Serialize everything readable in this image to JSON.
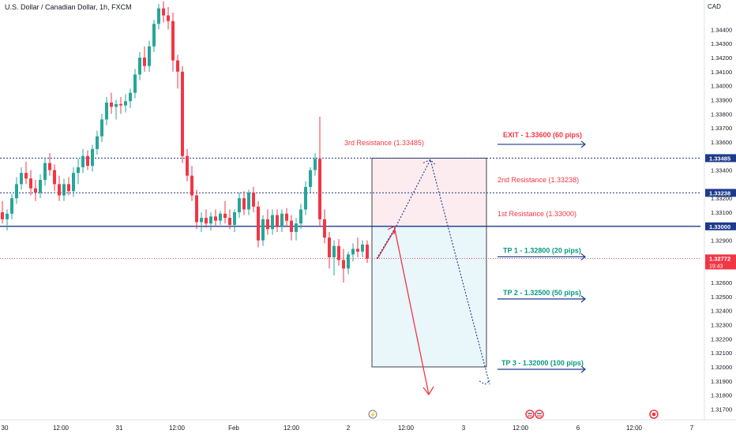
{
  "header": {
    "title": "U.S. Dollar / Canadian Dollar, 1h, FXCM",
    "currency": "CAD"
  },
  "chart_data": {
    "type": "candlestick",
    "ylim": [
      1.3168,
      1.3452
    ],
    "y_ticks": [
      "1.34400",
      "1.34300",
      "1.34200",
      "1.34100",
      "1.34000",
      "1.33900",
      "1.33800",
      "1.33700",
      "1.33600",
      "1.33400",
      "1.33200",
      "1.33100",
      "1.32900",
      "1.32600",
      "1.32500",
      "1.32400",
      "1.32300",
      "1.32200",
      "1.32100",
      "1.32000",
      "1.31900",
      "1.31800",
      "1.31700"
    ],
    "x_ticks": [
      "30",
      "12:00",
      "31",
      "12:00",
      "Feb",
      "12:00",
      "2",
      "12:00",
      "3",
      "12:00",
      "6",
      "12:00",
      "7"
    ],
    "grid": false,
    "price_tags": [
      {
        "label": "1.33485",
        "value": 1.33485,
        "color": "#1e3a8a",
        "style": "dotted"
      },
      {
        "label": "1.33238",
        "value": 1.33238,
        "color": "#1e3a8a",
        "style": "dotted"
      },
      {
        "label": "1.33000",
        "value": 1.33,
        "color": "#1e3a8a",
        "style": "solid"
      }
    ],
    "current_price": {
      "label": "1.32772",
      "countdown": "19:43",
      "value": 1.32772,
      "color": "#f23645"
    },
    "annotations": {
      "resistances": [
        {
          "text": "3rd Resistance (1.33485)",
          "value": 1.33485
        },
        {
          "text": "2nd Resistance (1.33238)",
          "value": 1.33238
        },
        {
          "text": "1st Resistance (1.33000)",
          "value": 1.33
        }
      ],
      "exit": {
        "text": "EXIT - 1.33600 (60 pips)",
        "value": 1.336
      },
      "targets": [
        {
          "text": "TP 1 - 1.32800 (20 pips)",
          "value": 1.328
        },
        {
          "text": "TP 2 - 1.32500 (50 pips)",
          "value": 1.325
        },
        {
          "text": "TP 3 - 1.32000 (100 pips)",
          "value": 1.32
        }
      ]
    },
    "candles": [
      [
        1.331,
        1.3318,
        1.3302,
        1.3305
      ],
      [
        1.3305,
        1.3312,
        1.3297,
        1.3309
      ],
      [
        1.3309,
        1.3323,
        1.3305,
        1.332
      ],
      [
        1.332,
        1.3335,
        1.3316,
        1.333
      ],
      [
        1.333,
        1.3342,
        1.3326,
        1.3338
      ],
      [
        1.3338,
        1.3346,
        1.333,
        1.3334
      ],
      [
        1.3334,
        1.334,
        1.3322,
        1.3327
      ],
      [
        1.3327,
        1.3333,
        1.3318,
        1.3324
      ],
      [
        1.3324,
        1.3337,
        1.332,
        1.3333
      ],
      [
        1.3333,
        1.3349,
        1.3329,
        1.3345
      ],
      [
        1.3345,
        1.3352,
        1.3336,
        1.334
      ],
      [
        1.334,
        1.3344,
        1.3325,
        1.333
      ],
      [
        1.333,
        1.3336,
        1.3318,
        1.3322
      ],
      [
        1.3322,
        1.3334,
        1.3318,
        1.333
      ],
      [
        1.333,
        1.3335,
        1.3322,
        1.3325
      ],
      [
        1.3325,
        1.3342,
        1.3321,
        1.3338
      ],
      [
        1.3338,
        1.3348,
        1.333,
        1.3342
      ],
      [
        1.3342,
        1.3355,
        1.3338,
        1.335
      ],
      [
        1.335,
        1.3354,
        1.334,
        1.3343
      ],
      [
        1.3343,
        1.3358,
        1.3339,
        1.3355
      ],
      [
        1.3355,
        1.3368,
        1.3351,
        1.3364
      ],
      [
        1.3364,
        1.338,
        1.336,
        1.3376
      ],
      [
        1.3376,
        1.3392,
        1.3372,
        1.3388
      ],
      [
        1.3388,
        1.3395,
        1.338,
        1.3385
      ],
      [
        1.3385,
        1.339,
        1.3376,
        1.3387
      ],
      [
        1.3387,
        1.3392,
        1.338,
        1.3386
      ],
      [
        1.3386,
        1.3394,
        1.3381,
        1.3389
      ],
      [
        1.3389,
        1.3398,
        1.3384,
        1.3395
      ],
      [
        1.3395,
        1.3412,
        1.3391,
        1.3408
      ],
      [
        1.3408,
        1.3424,
        1.3404,
        1.342
      ],
      [
        1.342,
        1.3428,
        1.341,
        1.3414
      ],
      [
        1.3414,
        1.3432,
        1.341,
        1.3428
      ],
      [
        1.3428,
        1.3447,
        1.3424,
        1.3444
      ],
      [
        1.3444,
        1.3458,
        1.344,
        1.3455
      ],
      [
        1.3455,
        1.346,
        1.3445,
        1.345
      ],
      [
        1.345,
        1.3456,
        1.344,
        1.3446
      ],
      [
        1.3446,
        1.3452,
        1.341,
        1.3418
      ],
      [
        1.3418,
        1.3422,
        1.3398,
        1.341
      ],
      [
        1.341,
        1.3414,
        1.3345,
        1.335
      ],
      [
        1.335,
        1.3355,
        1.3332,
        1.3336
      ],
      [
        1.3336,
        1.3343,
        1.3318,
        1.3322
      ],
      [
        1.3322,
        1.3326,
        1.3298,
        1.3303
      ],
      [
        1.3303,
        1.331,
        1.3296,
        1.3306
      ],
      [
        1.3306,
        1.3312,
        1.3299,
        1.3302
      ],
      [
        1.3302,
        1.331,
        1.3297,
        1.3307
      ],
      [
        1.3307,
        1.3312,
        1.33,
        1.3304
      ],
      [
        1.3304,
        1.3311,
        1.3301,
        1.3309
      ],
      [
        1.3309,
        1.3318,
        1.3302,
        1.3306
      ],
      [
        1.3306,
        1.3312,
        1.3298,
        1.3301
      ],
      [
        1.3301,
        1.3312,
        1.3296,
        1.331
      ],
      [
        1.331,
        1.3324,
        1.3306,
        1.332
      ],
      [
        1.332,
        1.3325,
        1.3308,
        1.3312
      ],
      [
        1.3312,
        1.3326,
        1.3308,
        1.3324
      ],
      [
        1.3324,
        1.3328,
        1.331,
        1.3314
      ],
      [
        1.3314,
        1.3318,
        1.3285,
        1.329
      ],
      [
        1.329,
        1.3308,
        1.3286,
        1.3305
      ],
      [
        1.3305,
        1.3312,
        1.3294,
        1.3298
      ],
      [
        1.3298,
        1.3312,
        1.3294,
        1.3308
      ],
      [
        1.3308,
        1.3312,
        1.3296,
        1.33
      ],
      [
        1.33,
        1.3312,
        1.3296,
        1.3309
      ],
      [
        1.3309,
        1.3313,
        1.33,
        1.3304
      ],
      [
        1.3304,
        1.3308,
        1.329,
        1.3296
      ],
      [
        1.3296,
        1.3306,
        1.329,
        1.3302
      ],
      [
        1.3302,
        1.3316,
        1.3298,
        1.3312
      ],
      [
        1.3312,
        1.3332,
        1.3308,
        1.3328
      ],
      [
        1.3328,
        1.3342,
        1.3324,
        1.334
      ],
      [
        1.334,
        1.3352,
        1.3336,
        1.3348
      ],
      [
        1.3348,
        1.3378,
        1.33,
        1.3305
      ],
      [
        1.3305,
        1.3312,
        1.3288,
        1.3292
      ],
      [
        1.3292,
        1.3296,
        1.327,
        1.3278
      ],
      [
        1.3278,
        1.329,
        1.3265,
        1.3286
      ],
      [
        1.3286,
        1.3291,
        1.3272,
        1.3276
      ],
      [
        1.3276,
        1.3284,
        1.326,
        1.327
      ],
      [
        1.327,
        1.3282,
        1.3266,
        1.328
      ],
      [
        1.328,
        1.3288,
        1.3275,
        1.3284
      ],
      [
        1.3284,
        1.3292,
        1.3278,
        1.3282
      ],
      [
        1.3282,
        1.329,
        1.3278,
        1.3287
      ],
      [
        1.3287,
        1.329,
        1.3274,
        1.3277
      ]
    ],
    "colors": {
      "up": "#26a69a",
      "down": "#f23645",
      "level": "#1e3a8a",
      "resistance": "#f23645",
      "target": "#089981"
    }
  }
}
